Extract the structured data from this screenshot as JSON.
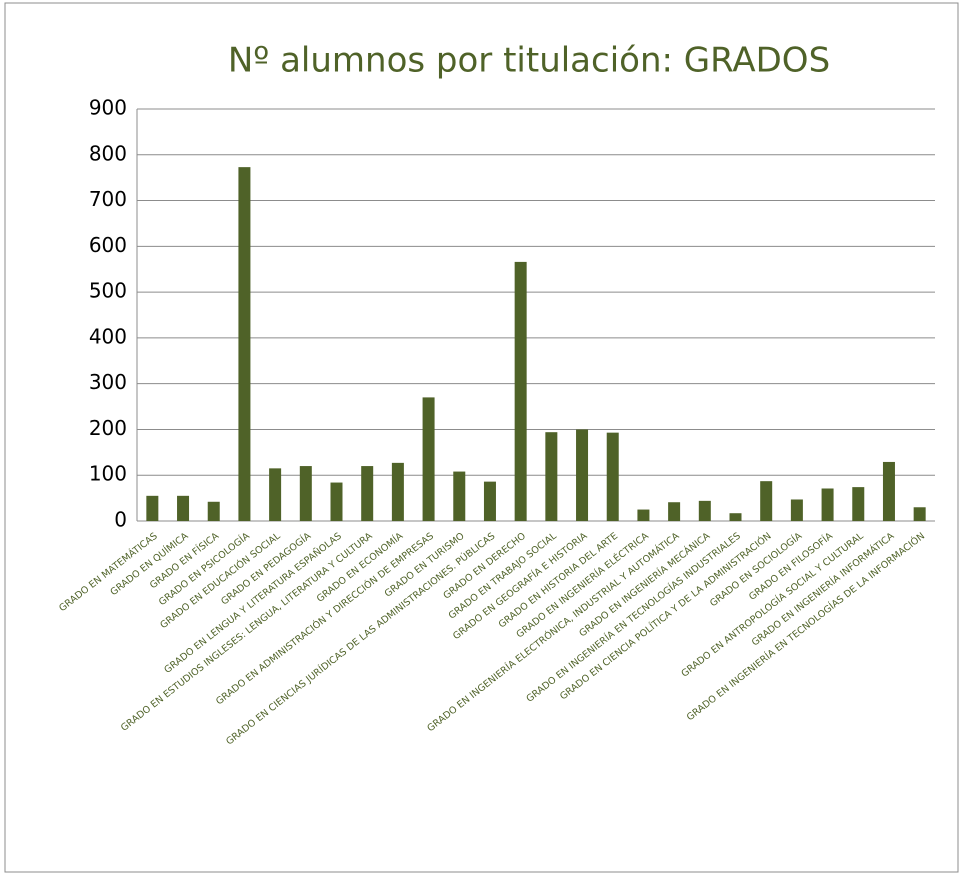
{
  "chart_data": {
    "type": "bar",
    "title": "Nº alumnos por titulación: GRADOS",
    "categories": [
      "GRADO EN MATEMÁTICAS",
      "GRADO EN QUÍMICA",
      "GRADO EN FÍSICA",
      "GRADO EN PSICOLOGÍA",
      "GRADO EN EDUCACIÓN SOCIAL",
      "GRADO EN PEDAGOGÍA",
      "GRADO EN LENGUA Y LITERATURA ESPAÑOLAS",
      "GRADO EN ESTUDIOS INGLESES: LENGUA, LITERATURA Y CULTURA",
      "GRADO EN ECONOMÍA",
      "GRADO EN ADMINISTRACIÓN Y DIRECCIÓN DE EMPRESAS",
      "GRADO EN TURISMO",
      "GRADO EN CIENCIAS JURÍDICAS DE LAS ADMINISTRACIONES. PÚBLICAS",
      "GRADO EN DERECHO",
      "GRADO EN TRABAJO SOCIAL",
      "GRADO EN GEOGRAFÍA E HISTORIA",
      "GRADO EN HISTORIA DEL ARTE",
      "GRADO EN INGENIERÍA ELÉCTRICA",
      "GRADO EN INGENIERÍA ELECTRÓNICA, INDUSTRIAL Y AUTOMÁTICA",
      "GRADO EN INGENIERÍA MECÁNICA",
      "GRADO EN INGENIERÍA EN TECNOLOGÍAS INDUSTRIALES",
      "GRADO EN CIENCIA POLÍTICA Y DE LA ADMINISTRACIÓN",
      "GRADO EN SOCIOLOGÍA",
      "GRADO EN FILOSOFÍA",
      "GRADO EN ANTROPOLOGÍA SOCIAL Y CULTURAL",
      "GRADO EN INGENIERÍA INFORMÁTICA",
      "GRADO EN INGENIERÍA EN TECNOLOGÍAS DE LA INFORMACIÓN"
    ],
    "values": [
      55,
      55,
      42,
      773,
      115,
      120,
      84,
      120,
      127,
      270,
      108,
      86,
      566,
      194,
      200,
      193,
      25,
      41,
      44,
      17,
      87,
      47,
      71,
      74,
      129,
      30
    ],
    "color": "#4f6228",
    "ylim": [
      0,
      900
    ],
    "yticks": [
      0,
      100,
      200,
      300,
      400,
      500,
      600,
      700,
      800,
      900
    ],
    "grid": true
  }
}
